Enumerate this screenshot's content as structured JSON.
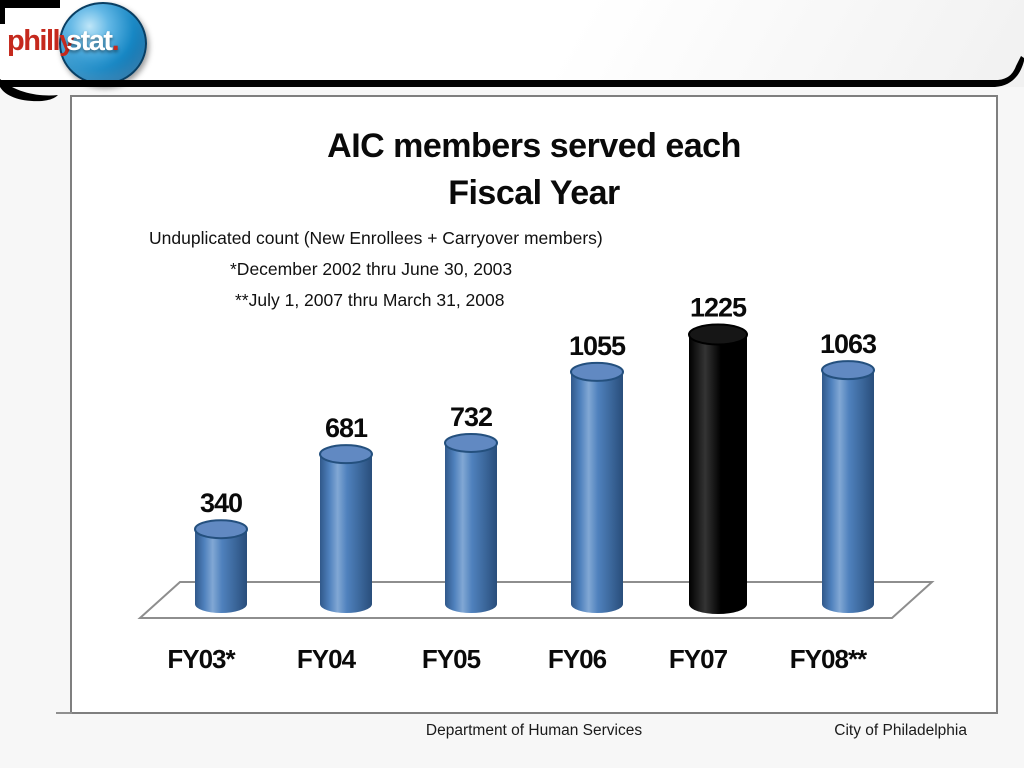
{
  "header": {
    "logo": {
      "philly": "philly",
      "stat": "stat",
      "dot": "."
    },
    "colors": {
      "logo_red": "#c5291d",
      "sphere_blue": "#1787c4"
    }
  },
  "chart": {
    "title_line1": "AIC members served each",
    "title_line2": "Fiscal Year",
    "annotations": [
      "Unduplicated count (New Enrollees + Carryover members)",
      "*December 2002 thru June 30, 2003",
      "**July 1, 2007 thru March 31, 2008"
    ]
  },
  "chart_data": {
    "type": "bar",
    "subtype": "3d-cylinder",
    "title": "AIC members served each Fiscal Year",
    "categories": [
      "FY03*",
      "FY04",
      "FY05",
      "FY06",
      "FY07",
      "FY08**"
    ],
    "values": [
      340,
      681,
      732,
      1055,
      1225,
      1063
    ],
    "bar_colors": [
      "#4f81bd",
      "#4f81bd",
      "#4f81bd",
      "#4f81bd",
      "#000000",
      "#4f81bd"
    ],
    "data_labels": true,
    "grid": false,
    "legend": null,
    "xlabel": "",
    "ylabel": "",
    "ylim": [
      0,
      1300
    ]
  },
  "footer": {
    "center": "Department of Human Services",
    "right": "City of Philadelphia"
  }
}
